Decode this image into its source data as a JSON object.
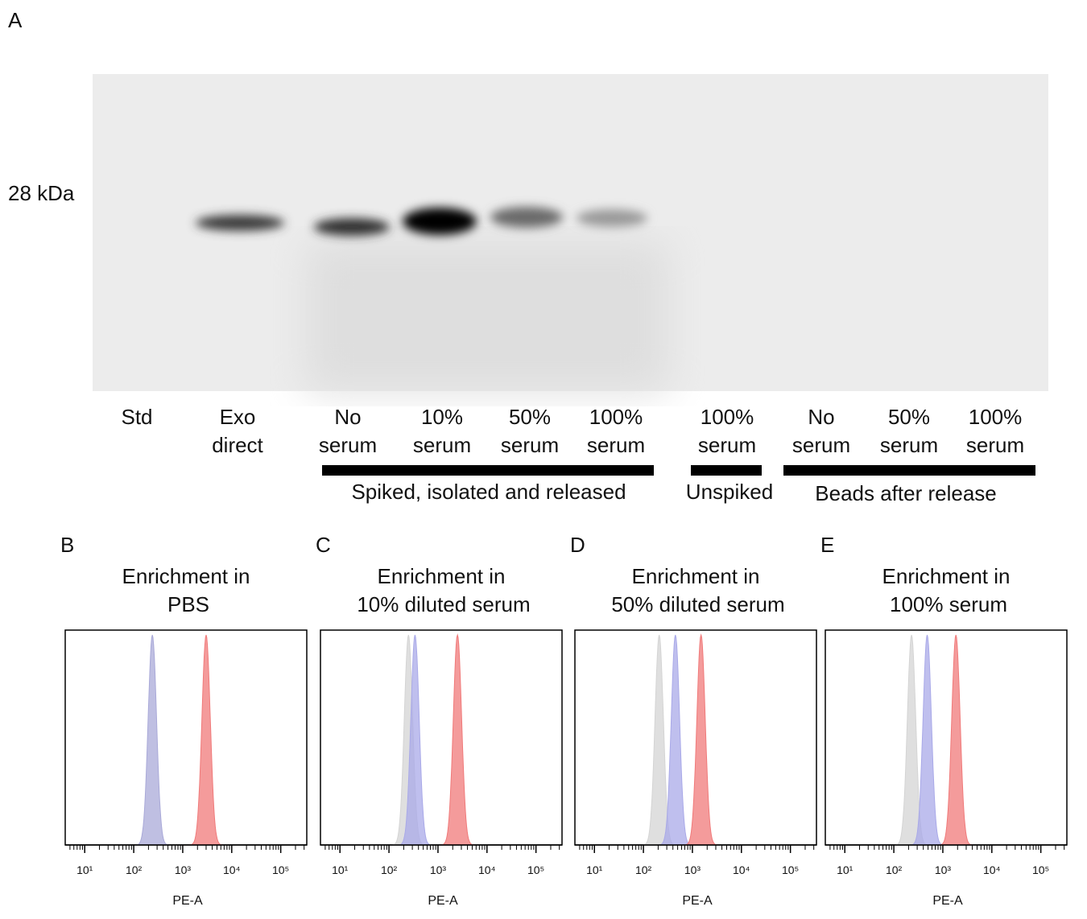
{
  "panel_a": {
    "label": "A",
    "marker": "28 kDa",
    "lanes": [
      [
        "Std"
      ],
      [
        "Exo",
        "direct"
      ],
      [
        "No",
        "serum"
      ],
      [
        "10%",
        "serum"
      ],
      [
        "50%",
        "serum"
      ],
      [
        "100%",
        "serum"
      ],
      [
        "100%",
        "serum"
      ],
      [
        "No",
        "serum"
      ],
      [
        "50%",
        "serum"
      ],
      [
        "100%",
        "serum"
      ]
    ],
    "groups": [
      "Spiked, isolated and released",
      "Unspiked",
      "Beads after release"
    ]
  },
  "chart_data": [
    {
      "type": "histogram",
      "panel": "B",
      "title": [
        "Enrichment in",
        "PBS"
      ],
      "xlabel": "PE-A",
      "xscale": "log",
      "xlim": [
        4,
        340000
      ],
      "xticks": [
        {
          "value": 10,
          "label": "10¹"
        },
        {
          "value": 100,
          "label": "10²"
        },
        {
          "value": 1000,
          "label": "10³"
        },
        {
          "value": 10000,
          "label": "10⁴"
        },
        {
          "value": 100000,
          "label": "10⁵"
        }
      ],
      "series": [
        {
          "color": "#a9a9d8",
          "peak": 240
        },
        {
          "color": "#f07a7a",
          "peak": 3000
        }
      ]
    },
    {
      "type": "histogram",
      "panel": "C",
      "title": [
        "Enrichment in",
        "10% diluted serum"
      ],
      "xlabel": "PE-A",
      "xscale": "log",
      "xlim": [
        4,
        340000
      ],
      "xticks": [
        {
          "value": 10,
          "label": "10¹"
        },
        {
          "value": 100,
          "label": "10²"
        },
        {
          "value": 1000,
          "label": "10³"
        },
        {
          "value": 10000,
          "label": "10⁴"
        },
        {
          "value": 100000,
          "label": "10⁵"
        }
      ],
      "series": [
        {
          "color": "#d4d4d4",
          "peak": 250
        },
        {
          "color": "#a9a9e8",
          "peak": 340
        },
        {
          "color": "#f07a7a",
          "peak": 2500
        }
      ]
    },
    {
      "type": "histogram",
      "panel": "D",
      "title": [
        "Enrichment in",
        "50% diluted serum"
      ],
      "xlabel": "PE-A",
      "xscale": "log",
      "xlim": [
        4,
        340000
      ],
      "xticks": [
        {
          "value": 10,
          "label": "10¹"
        },
        {
          "value": 100,
          "label": "10²"
        },
        {
          "value": 1000,
          "label": "10³"
        },
        {
          "value": 10000,
          "label": "10⁴"
        },
        {
          "value": 100000,
          "label": "10⁵"
        }
      ],
      "series": [
        {
          "color": "#d4d4d4",
          "peak": 210
        },
        {
          "color": "#a9a9e8",
          "peak": 450
        },
        {
          "color": "#f07a7a",
          "peak": 1500
        }
      ]
    },
    {
      "type": "histogram",
      "panel": "E",
      "title": [
        "Enrichment in",
        "100% serum"
      ],
      "xlabel": "PE-A",
      "xscale": "log",
      "xlim": [
        4,
        340000
      ],
      "xticks": [
        {
          "value": 10,
          "label": "10¹"
        },
        {
          "value": 100,
          "label": "10²"
        },
        {
          "value": 1000,
          "label": "10³"
        },
        {
          "value": 10000,
          "label": "10⁴"
        },
        {
          "value": 100000,
          "label": "10⁵"
        }
      ],
      "series": [
        {
          "color": "#d4d4d4",
          "peak": 230
        },
        {
          "color": "#a9a9e8",
          "peak": 480
        },
        {
          "color": "#f07a7a",
          "peak": 1850
        }
      ]
    }
  ]
}
